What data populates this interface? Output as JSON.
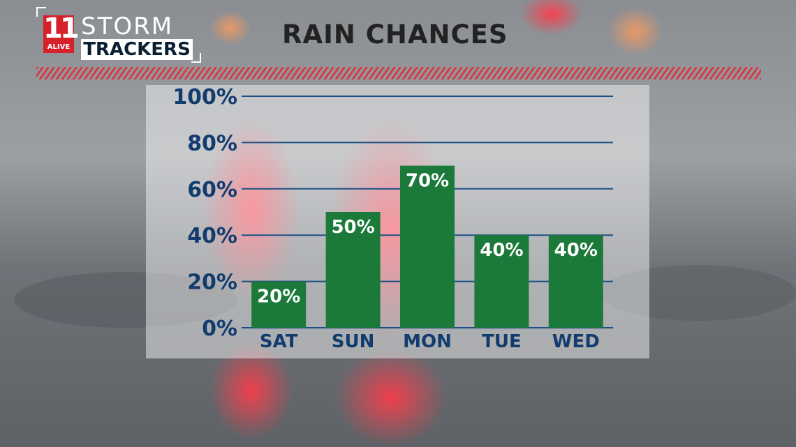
{
  "header": {
    "title": "RAIN CHANCES"
  },
  "logo": {
    "number": "11",
    "station": "ALIVE",
    "line1": "STORM",
    "line2": "TRACKERS"
  },
  "colors": {
    "bar": "#1b7a3a",
    "gridline": "#1d4f86",
    "tick_text": "#123c6e",
    "accent_red": "#e0303a"
  },
  "chart_data": {
    "type": "bar",
    "title": "RAIN CHANCES",
    "categories": [
      "SAT",
      "SUN",
      "MON",
      "TUE",
      "WED"
    ],
    "values": [
      20,
      50,
      70,
      40,
      40
    ],
    "data_labels": [
      "20%",
      "50%",
      "70%",
      "40%",
      "40%"
    ],
    "ylim": [
      0,
      100
    ],
    "yticks": [
      0,
      20,
      40,
      60,
      80,
      100
    ],
    "ytick_labels": [
      "0%",
      "20%",
      "40%",
      "60%",
      "80%",
      "100%"
    ],
    "grid": true,
    "xlabel": "",
    "ylabel": ""
  }
}
